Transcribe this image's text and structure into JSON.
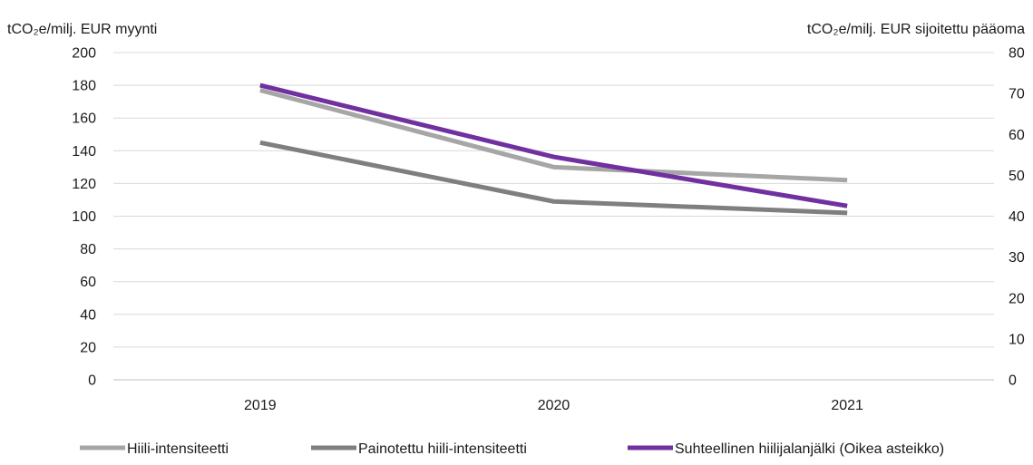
{
  "chart_data": {
    "type": "line",
    "categories": [
      "2019",
      "2020",
      "2021"
    ],
    "y_left": {
      "label": "tCO₂e/milj. EUR myynti",
      "min": 0,
      "max": 200,
      "step": 20,
      "ticks": [
        "0",
        "20",
        "40",
        "60",
        "80",
        "100",
        "120",
        "140",
        "160",
        "180",
        "200"
      ]
    },
    "y_right": {
      "label": "tCO₂e/milj. EUR sijoitettu pääoma",
      "min": 0,
      "max": 80,
      "step": 10,
      "ticks": [
        "0",
        "10",
        "20",
        "30",
        "40",
        "50",
        "60",
        "70",
        "80"
      ]
    },
    "grid": true,
    "legend_position": "bottom",
    "series": [
      {
        "name": "Hiili-intensiteetti",
        "axis": "left",
        "color": "#a6a6a6",
        "values": [
          177,
          130,
          122
        ]
      },
      {
        "name": "Painotettu hiili-intensiteetti",
        "axis": "left",
        "color": "#7f7f7f",
        "values": [
          145,
          109,
          102
        ]
      },
      {
        "name": "Suhteellinen hiilijalanjälki (Oikea asteikko)",
        "axis": "right",
        "color": "#7030a0",
        "values": [
          72,
          54.5,
          42.5
        ]
      }
    ]
  }
}
